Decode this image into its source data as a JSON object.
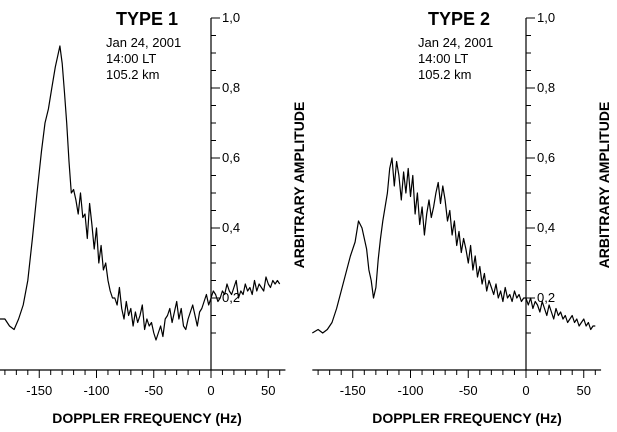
{
  "chart_data": [
    {
      "type": "line",
      "title": "TYPE 1",
      "annotations": [
        "Jan 24, 2001",
        "14:00 LT",
        "105.2 km"
      ],
      "xlabel": "DOPPLER FREQUENCY (Hz)",
      "ylabel": "ARBITRARY AMPLITUDE",
      "xlim": [
        -190,
        65
      ],
      "ylim": [
        0.05,
        1.0
      ],
      "x_ticks": [
        "-150",
        "-100",
        "-50",
        "0",
        "50"
      ],
      "y_ticks": [
        "0,2",
        "0,4",
        "0,6",
        "0,8",
        "1,0"
      ],
      "grid": false,
      "series": [
        {
          "x": [
            -190,
            -185,
            -180,
            -176,
            -172,
            -168,
            -164,
            -160,
            -156,
            -152,
            -148,
            -145,
            -142,
            -139,
            -136,
            -134,
            -132,
            -130,
            -128,
            -126,
            -124,
            -122,
            -120,
            -118,
            -116,
            -114,
            -112,
            -110,
            -108,
            -106,
            -104,
            -102,
            -100,
            -98,
            -96,
            -94,
            -92,
            -90,
            -88,
            -86,
            -84,
            -82,
            -80,
            -78,
            -76,
            -74,
            -72,
            -70,
            -68,
            -66,
            -64,
            -62,
            -60,
            -58,
            -56,
            -54,
            -52,
            -50,
            -48,
            -46,
            -44,
            -42,
            -40,
            -38,
            -36,
            -34,
            -32,
            -30,
            -28,
            -26,
            -24,
            -22,
            -20,
            -18,
            -16,
            -14,
            -12,
            -10,
            -8,
            -6,
            -4,
            -2,
            0,
            2,
            4,
            6,
            8,
            10,
            12,
            14,
            16,
            18,
            20,
            22,
            24,
            26,
            28,
            30,
            32,
            34,
            36,
            38,
            40,
            42,
            44,
            46,
            48,
            50,
            52,
            54,
            56,
            58,
            60
          ],
          "y": [
            0.15,
            0.14,
            0.14,
            0.12,
            0.11,
            0.14,
            0.18,
            0.25,
            0.37,
            0.5,
            0.62,
            0.7,
            0.74,
            0.8,
            0.86,
            0.89,
            0.92,
            0.87,
            0.79,
            0.7,
            0.59,
            0.5,
            0.51,
            0.48,
            0.44,
            0.5,
            0.43,
            0.44,
            0.37,
            0.47,
            0.41,
            0.34,
            0.4,
            0.3,
            0.35,
            0.28,
            0.3,
            0.25,
            0.22,
            0.2,
            0.2,
            0.18,
            0.23,
            0.17,
            0.14,
            0.19,
            0.15,
            0.17,
            0.12,
            0.16,
            0.13,
            0.15,
            0.18,
            0.11,
            0.14,
            0.12,
            0.13,
            0.1,
            0.08,
            0.1,
            0.12,
            0.09,
            0.14,
            0.15,
            0.17,
            0.13,
            0.16,
            0.19,
            0.14,
            0.17,
            0.12,
            0.11,
            0.14,
            0.16,
            0.18,
            0.15,
            0.12,
            0.16,
            0.17,
            0.19,
            0.21,
            0.18,
            0.2,
            0.22,
            0.21,
            0.19,
            0.2,
            0.22,
            0.21,
            0.24,
            0.22,
            0.21,
            0.23,
            0.25,
            0.2,
            0.22,
            0.21,
            0.24,
            0.22,
            0.23,
            0.21,
            0.25,
            0.22,
            0.24,
            0.23,
            0.22,
            0.26,
            0.24,
            0.23,
            0.25,
            0.24,
            0.25,
            0.24
          ]
        }
      ]
    },
    {
      "type": "line",
      "title": "TYPE 2",
      "annotations": [
        "Jan 24, 2001",
        "14:00 LT",
        "105.2 km"
      ],
      "xlabel": "DOPPLER FREQUENCY (Hz)",
      "ylabel": "ARBITRARY AMPLITUDE",
      "xlim": [
        -185,
        65
      ],
      "ylim": [
        0.05,
        1.0
      ],
      "x_ticks": [
        "-150",
        "-100",
        "-50",
        "0",
        "50"
      ],
      "y_ticks": [
        "0,2",
        "0,4",
        "0,6",
        "0,8",
        "1,0"
      ],
      "grid": false,
      "series": [
        {
          "x": [
            -185,
            -180,
            -176,
            -172,
            -168,
            -164,
            -160,
            -156,
            -152,
            -148,
            -145,
            -142,
            -140,
            -138,
            -136,
            -134,
            -132,
            -130,
            -128,
            -126,
            -124,
            -122,
            -120,
            -118,
            -116,
            -114,
            -112,
            -110,
            -108,
            -106,
            -104,
            -102,
            -100,
            -98,
            -96,
            -94,
            -92,
            -90,
            -88,
            -86,
            -84,
            -82,
            -80,
            -78,
            -76,
            -74,
            -72,
            -70,
            -68,
            -66,
            -64,
            -62,
            -60,
            -58,
            -56,
            -54,
            -52,
            -50,
            -48,
            -46,
            -44,
            -42,
            -40,
            -38,
            -36,
            -34,
            -32,
            -30,
            -28,
            -26,
            -24,
            -22,
            -20,
            -18,
            -16,
            -14,
            -12,
            -10,
            -8,
            -6,
            -4,
            -2,
            0,
            2,
            4,
            6,
            8,
            10,
            12,
            14,
            16,
            18,
            20,
            22,
            24,
            26,
            28,
            30,
            32,
            34,
            36,
            38,
            40,
            42,
            44,
            46,
            48,
            50,
            52,
            54,
            56,
            58,
            60
          ],
          "y": [
            0.1,
            0.11,
            0.1,
            0.11,
            0.13,
            0.17,
            0.22,
            0.27,
            0.32,
            0.36,
            0.42,
            0.4,
            0.37,
            0.34,
            0.28,
            0.25,
            0.2,
            0.23,
            0.31,
            0.37,
            0.42,
            0.46,
            0.5,
            0.57,
            0.6,
            0.52,
            0.59,
            0.55,
            0.48,
            0.56,
            0.5,
            0.57,
            0.49,
            0.55,
            0.44,
            0.5,
            0.41,
            0.46,
            0.38,
            0.44,
            0.48,
            0.43,
            0.46,
            0.5,
            0.53,
            0.47,
            0.52,
            0.48,
            0.42,
            0.45,
            0.38,
            0.42,
            0.35,
            0.39,
            0.33,
            0.37,
            0.34,
            0.3,
            0.35,
            0.28,
            0.32,
            0.26,
            0.29,
            0.24,
            0.27,
            0.22,
            0.25,
            0.23,
            0.21,
            0.24,
            0.2,
            0.22,
            0.19,
            0.23,
            0.2,
            0.21,
            0.19,
            0.22,
            0.2,
            0.21,
            0.19,
            0.2,
            0.2,
            0.18,
            0.2,
            0.17,
            0.19,
            0.18,
            0.16,
            0.19,
            0.17,
            0.15,
            0.18,
            0.16,
            0.14,
            0.17,
            0.15,
            0.16,
            0.14,
            0.15,
            0.13,
            0.14,
            0.15,
            0.13,
            0.14,
            0.12,
            0.13,
            0.14,
            0.12,
            0.13,
            0.11,
            0.12,
            0.12
          ]
        }
      ]
    }
  ]
}
